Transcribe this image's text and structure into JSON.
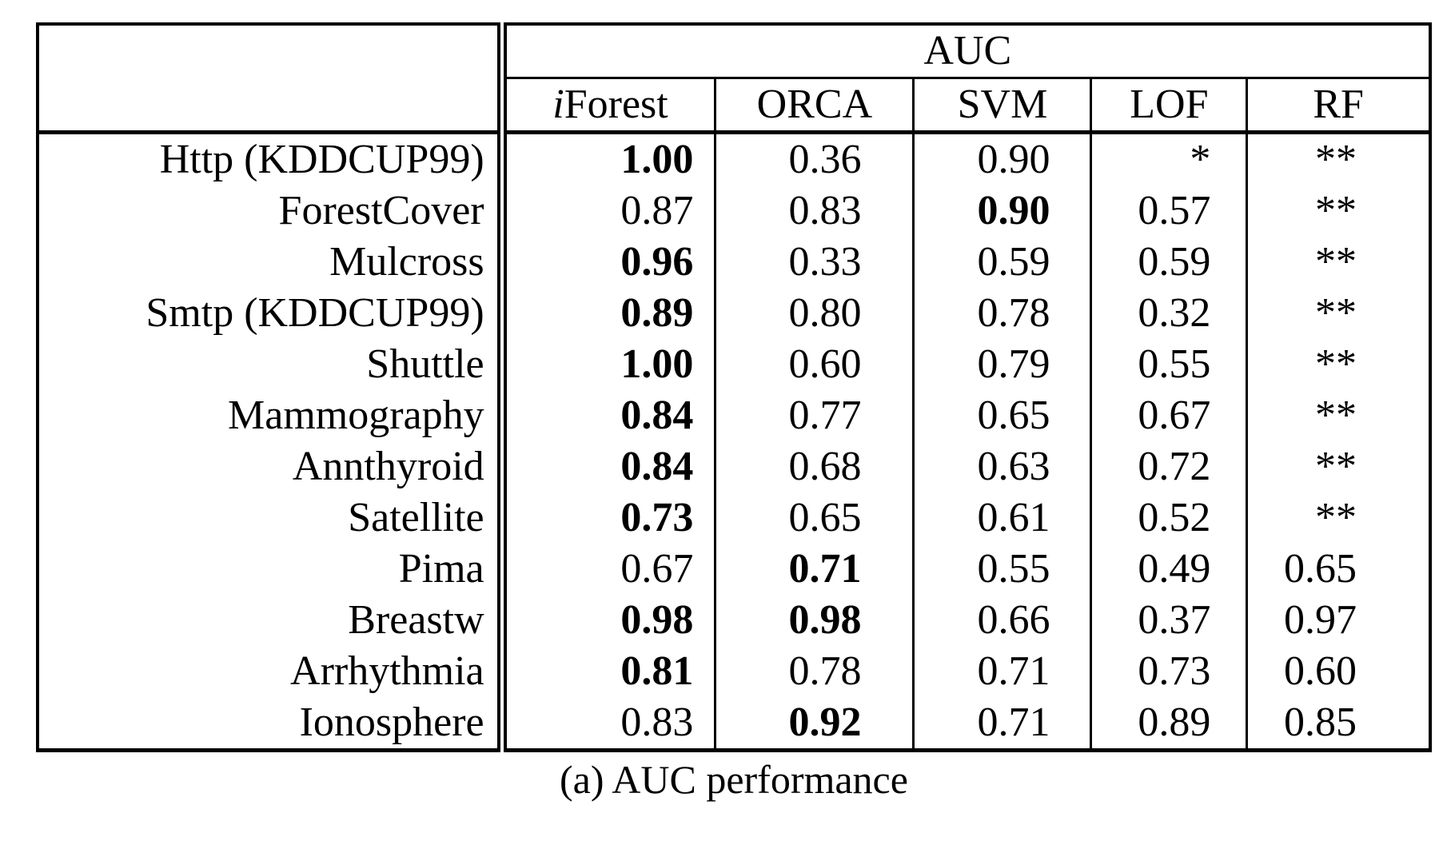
{
  "caption": "(a) AUC performance",
  "table": {
    "group_header": "AUC",
    "columns": [
      {
        "text": "iForest",
        "italic_first": true
      },
      {
        "text": "ORCA",
        "italic_first": false
      },
      {
        "text": "SVM",
        "italic_first": false
      },
      {
        "text": "LOF",
        "italic_first": false
      },
      {
        "text": "RF",
        "italic_first": false
      }
    ],
    "rows": [
      {
        "dataset": "Http (KDDCUP99)",
        "values": [
          {
            "v": "1.00",
            "b": true
          },
          {
            "v": "0.36",
            "b": false
          },
          {
            "v": "0.90",
            "b": false
          },
          {
            "v": "*",
            "b": false
          },
          {
            "v": "**",
            "b": false
          }
        ]
      },
      {
        "dataset": "ForestCover",
        "values": [
          {
            "v": "0.87",
            "b": false
          },
          {
            "v": "0.83",
            "b": false
          },
          {
            "v": "0.90",
            "b": true
          },
          {
            "v": "0.57",
            "b": false
          },
          {
            "v": "**",
            "b": false
          }
        ]
      },
      {
        "dataset": "Mulcross",
        "values": [
          {
            "v": "0.96",
            "b": true
          },
          {
            "v": "0.33",
            "b": false
          },
          {
            "v": "0.59",
            "b": false
          },
          {
            "v": "0.59",
            "b": false
          },
          {
            "v": "**",
            "b": false
          }
        ]
      },
      {
        "dataset": "Smtp (KDDCUP99)",
        "values": [
          {
            "v": "0.89",
            "b": true
          },
          {
            "v": "0.80",
            "b": false
          },
          {
            "v": "0.78",
            "b": false
          },
          {
            "v": "0.32",
            "b": false
          },
          {
            "v": "**",
            "b": false
          }
        ]
      },
      {
        "dataset": "Shuttle",
        "values": [
          {
            "v": "1.00",
            "b": true
          },
          {
            "v": "0.60",
            "b": false
          },
          {
            "v": "0.79",
            "b": false
          },
          {
            "v": "0.55",
            "b": false
          },
          {
            "v": "**",
            "b": false
          }
        ]
      },
      {
        "dataset": "Mammography",
        "values": [
          {
            "v": "0.84",
            "b": true
          },
          {
            "v": "0.77",
            "b": false
          },
          {
            "v": "0.65",
            "b": false
          },
          {
            "v": "0.67",
            "b": false
          },
          {
            "v": "**",
            "b": false
          }
        ]
      },
      {
        "dataset": "Annthyroid",
        "values": [
          {
            "v": "0.84",
            "b": true
          },
          {
            "v": "0.68",
            "b": false
          },
          {
            "v": "0.63",
            "b": false
          },
          {
            "v": "0.72",
            "b": false
          },
          {
            "v": "**",
            "b": false
          }
        ]
      },
      {
        "dataset": "Satellite",
        "values": [
          {
            "v": "0.73",
            "b": true
          },
          {
            "v": "0.65",
            "b": false
          },
          {
            "v": "0.61",
            "b": false
          },
          {
            "v": "0.52",
            "b": false
          },
          {
            "v": "**",
            "b": false
          }
        ]
      },
      {
        "dataset": "Pima",
        "values": [
          {
            "v": "0.67",
            "b": false
          },
          {
            "v": "0.71",
            "b": true
          },
          {
            "v": "0.55",
            "b": false
          },
          {
            "v": "0.49",
            "b": false
          },
          {
            "v": "0.65",
            "b": false
          }
        ]
      },
      {
        "dataset": "Breastw",
        "values": [
          {
            "v": "0.98",
            "b": true
          },
          {
            "v": "0.98",
            "b": true
          },
          {
            "v": "0.66",
            "b": false
          },
          {
            "v": "0.37",
            "b": false
          },
          {
            "v": "0.97",
            "b": false
          }
        ]
      },
      {
        "dataset": "Arrhythmia",
        "values": [
          {
            "v": "0.81",
            "b": true
          },
          {
            "v": "0.78",
            "b": false
          },
          {
            "v": "0.71",
            "b": false
          },
          {
            "v": "0.73",
            "b": false
          },
          {
            "v": "0.60",
            "b": false
          }
        ]
      },
      {
        "dataset": "Ionosphere",
        "values": [
          {
            "v": "0.83",
            "b": false
          },
          {
            "v": "0.92",
            "b": true
          },
          {
            "v": "0.71",
            "b": false
          },
          {
            "v": "0.89",
            "b": false
          },
          {
            "v": "0.85",
            "b": false
          }
        ]
      }
    ]
  }
}
